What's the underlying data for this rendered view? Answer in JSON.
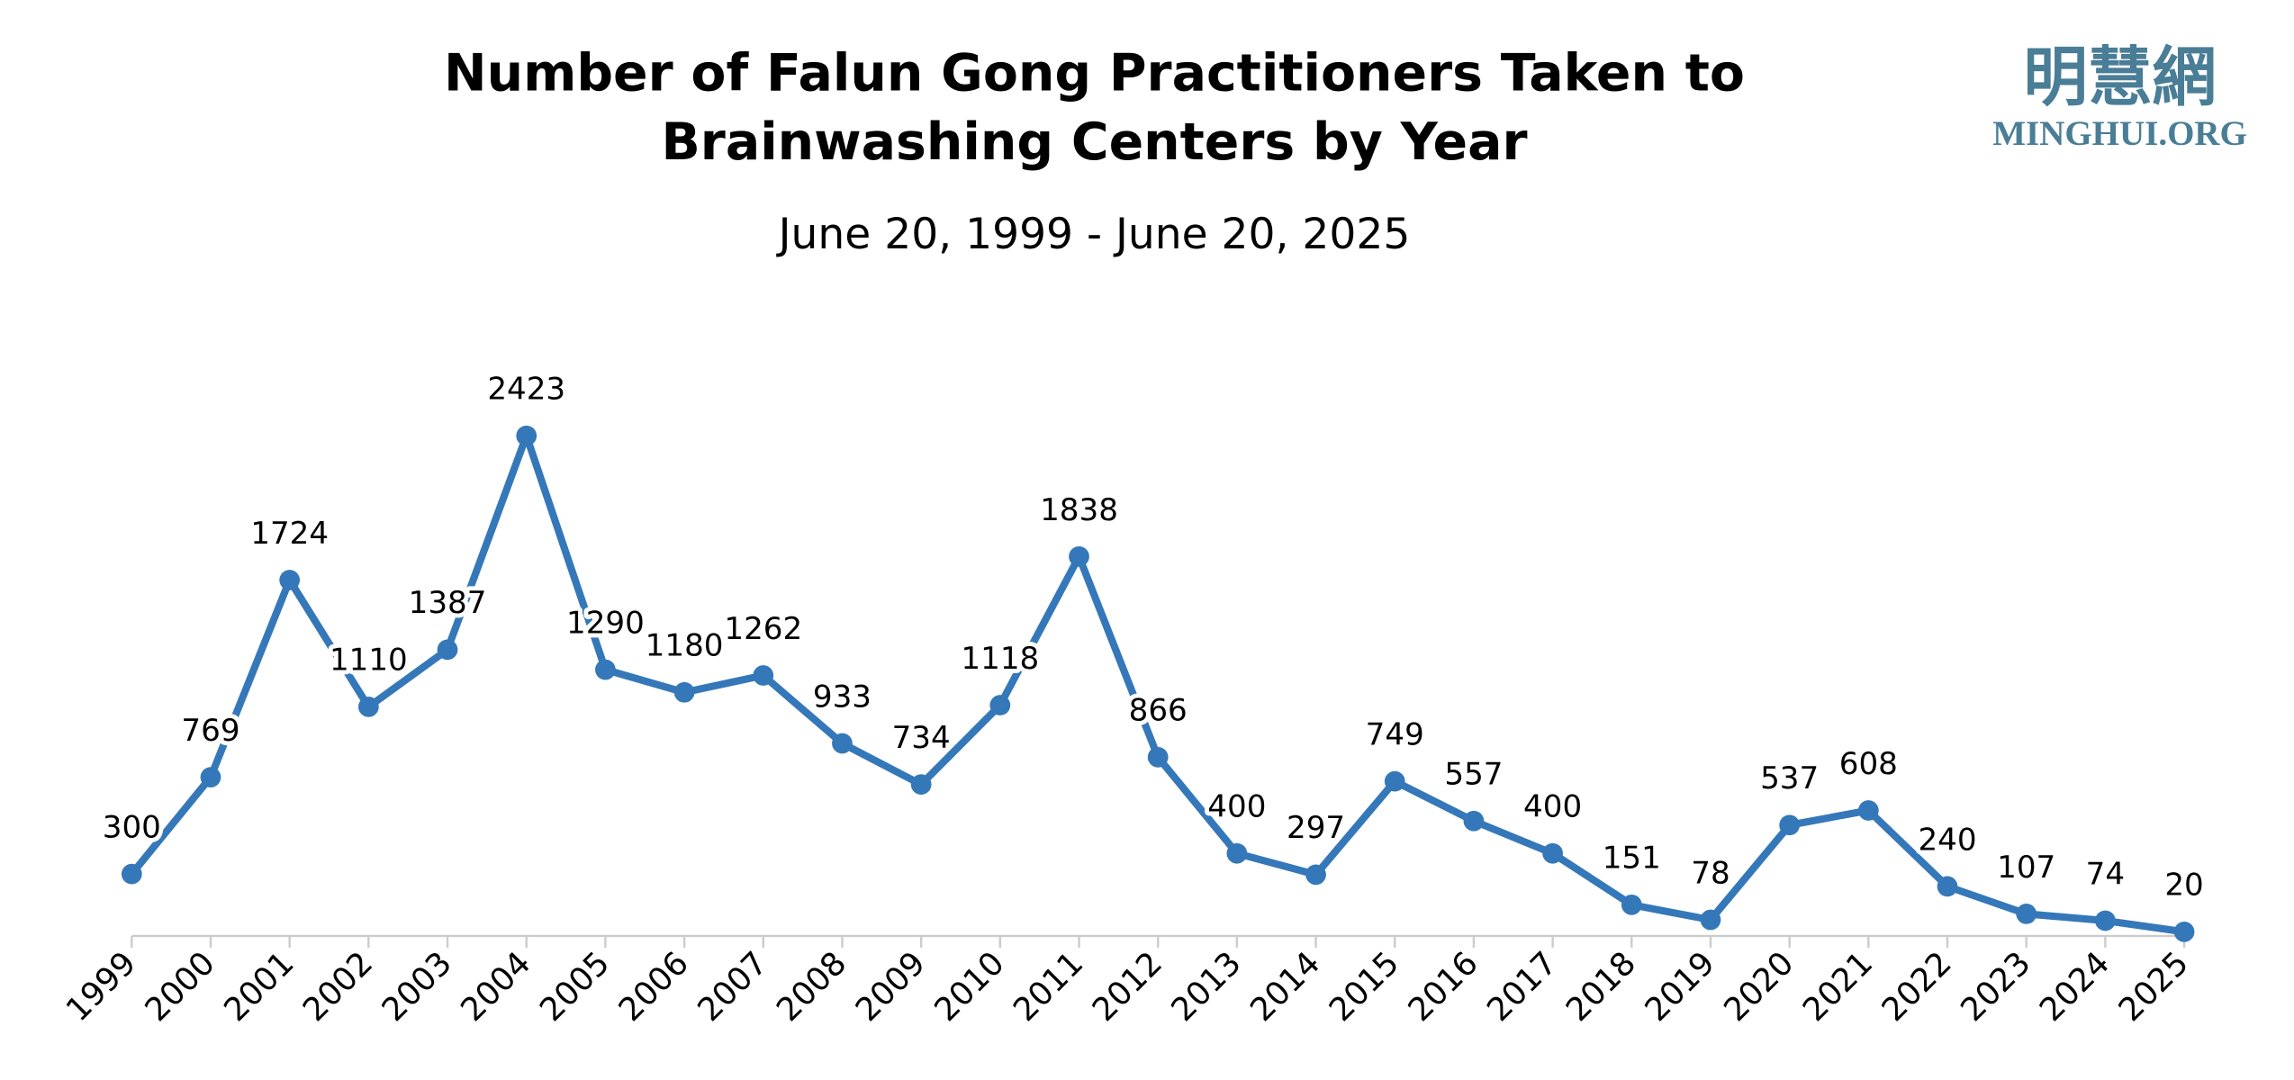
{
  "chart_data": {
    "type": "line",
    "title": [
      "Number of Falun Gong Practitioners Taken to",
      "Brainwashing Centers by Year"
    ],
    "subtitle": "June 20, 1999 - June 20, 2025",
    "categories": [
      "1999",
      "2000",
      "2001",
      "2002",
      "2003",
      "2004",
      "2005",
      "2006",
      "2007",
      "2008",
      "2009",
      "2010",
      "2011",
      "2012",
      "2013",
      "2014",
      "2015",
      "2016",
      "2017",
      "2018",
      "2019",
      "2020",
      "2021",
      "2022",
      "2023",
      "2024",
      "2025"
    ],
    "values": [
      300,
      769,
      1724,
      1110,
      1387,
      2423,
      1290,
      1180,
      1262,
      933,
      734,
      1118,
      1838,
      866,
      400,
      297,
      749,
      557,
      400,
      151,
      78,
      537,
      608,
      240,
      107,
      74,
      20
    ],
    "color": "#3578b9"
  },
  "logo": {
    "chinese": "明慧網",
    "site": "MINGHUI.ORG"
  }
}
